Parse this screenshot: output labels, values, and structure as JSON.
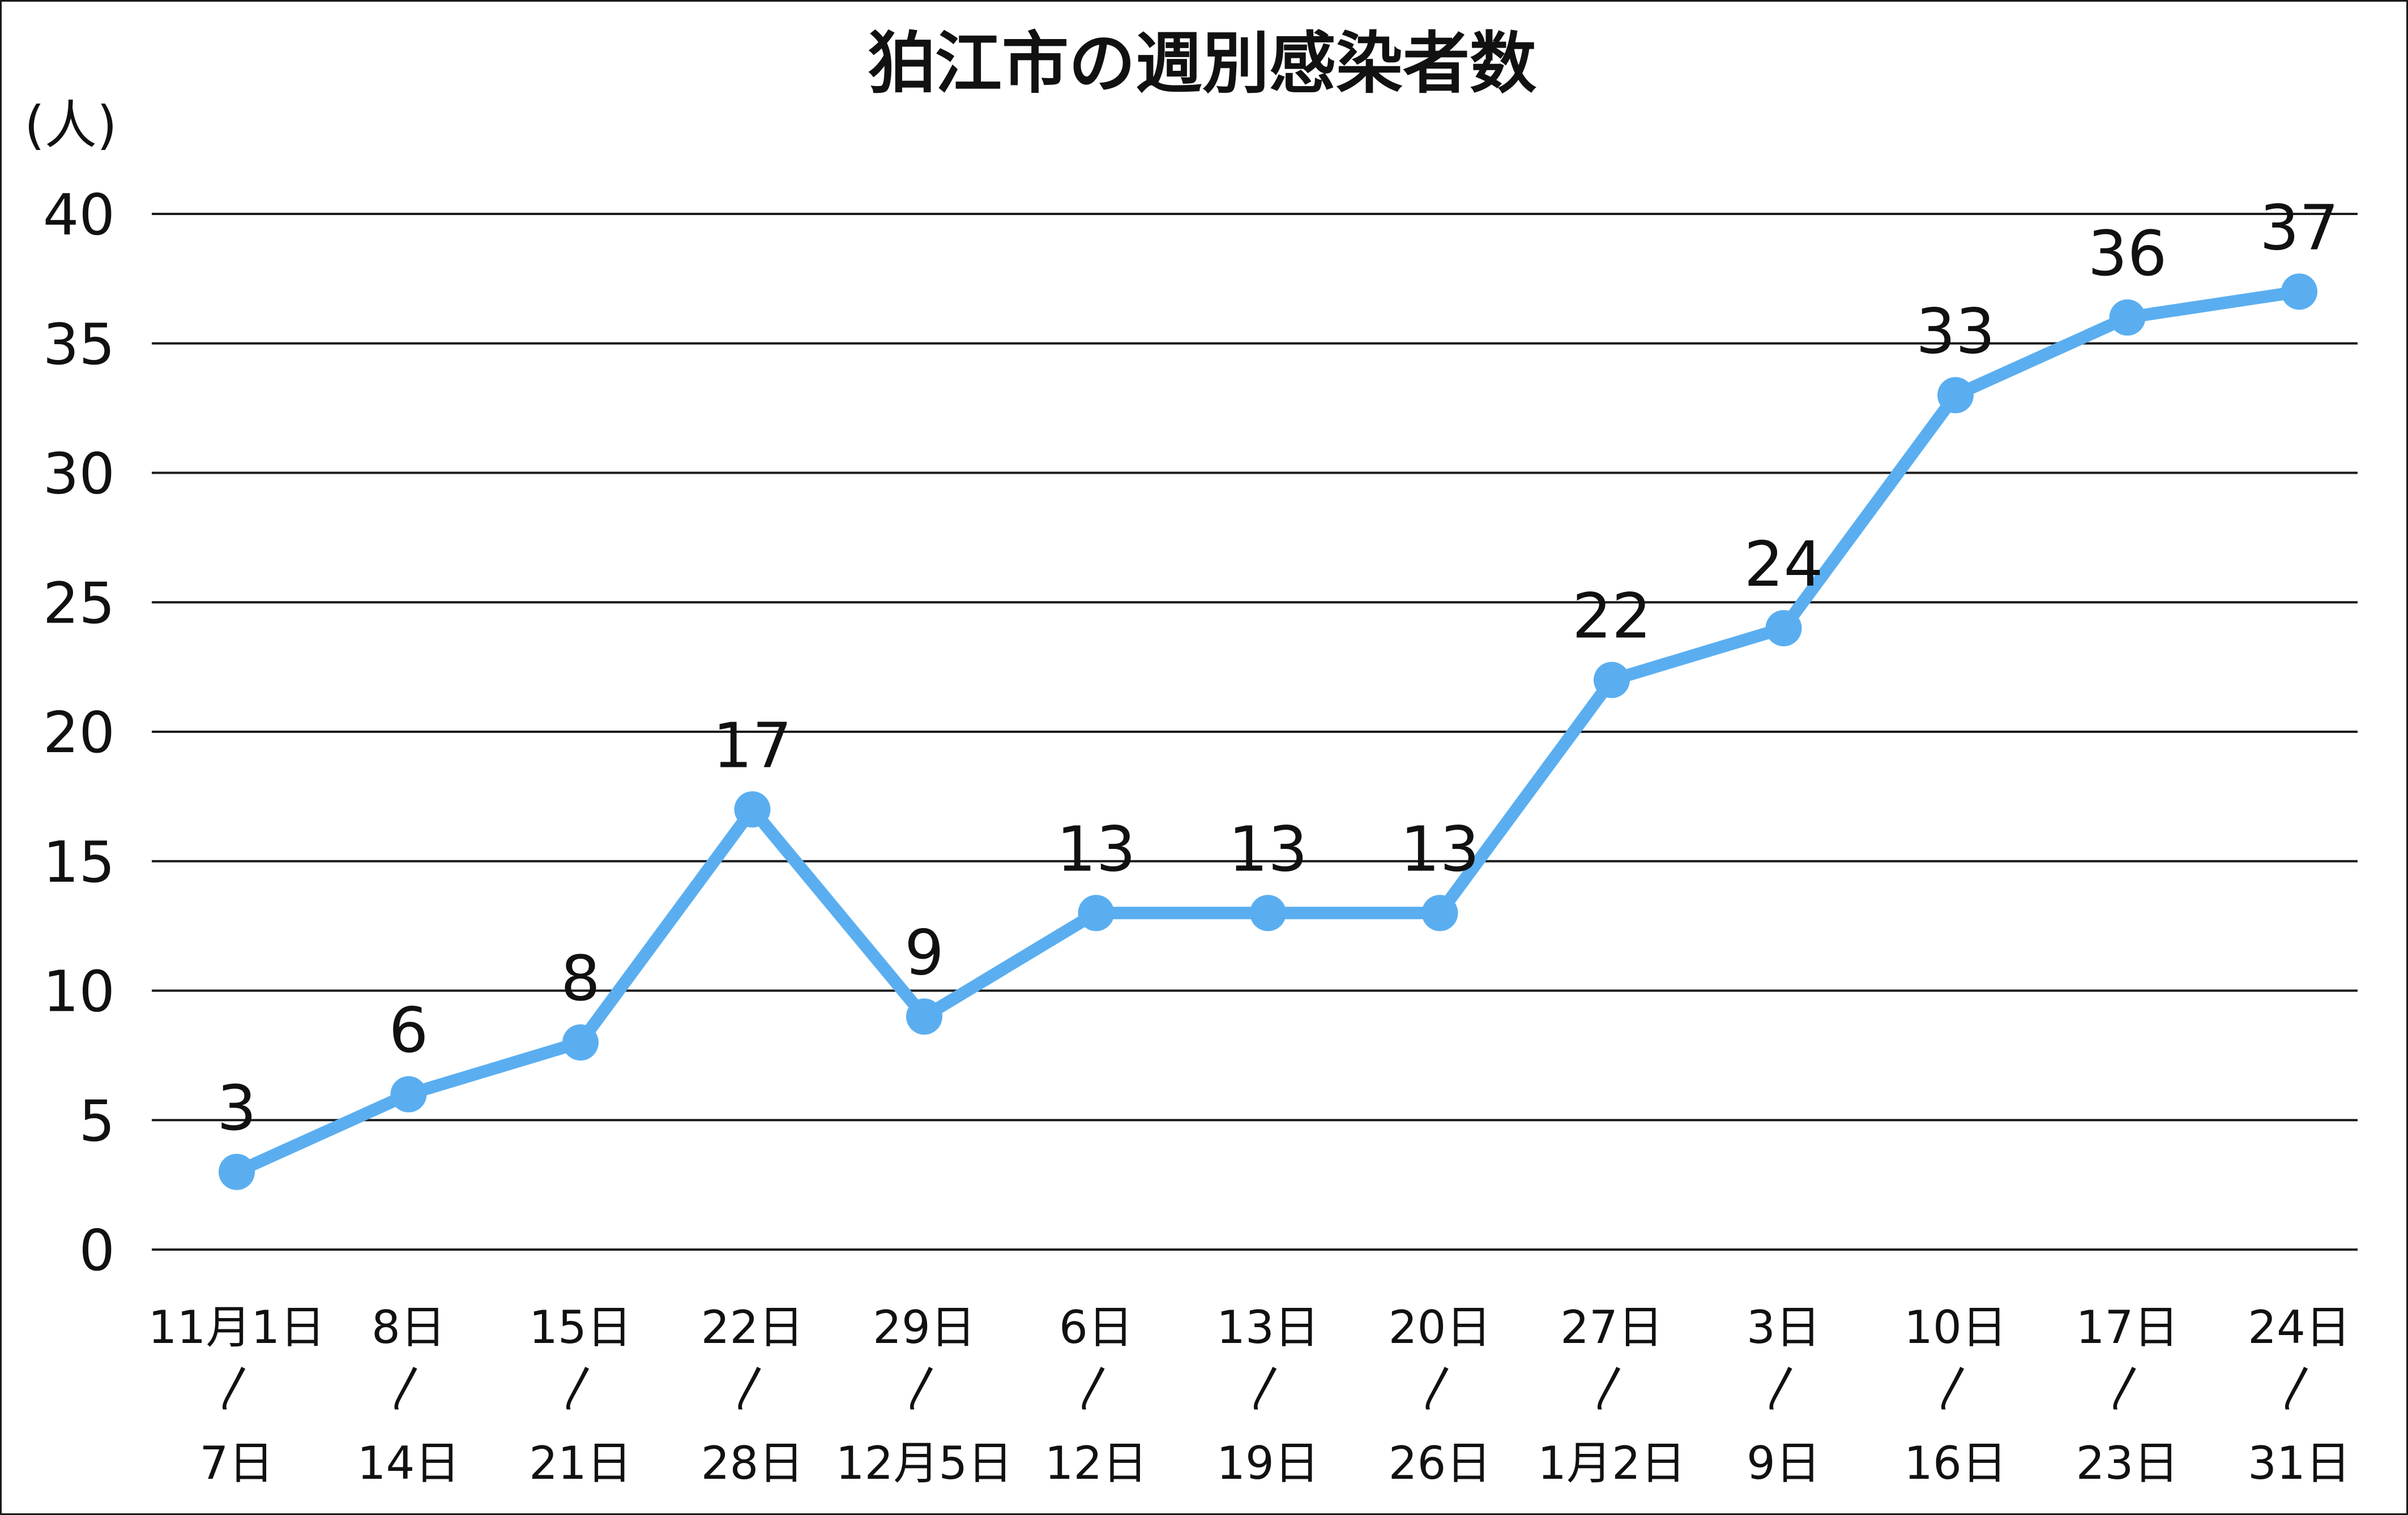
{
  "chart_data": {
    "type": "line",
    "title": "狛江市の週別感染者数",
    "ylabel": "(人)",
    "xlabel": "",
    "ylim": [
      0,
      40
    ],
    "yticks": [
      "0",
      "5",
      "10",
      "15",
      "20",
      "25",
      "30",
      "35",
      "40"
    ],
    "grid": true,
    "color": "#5aaef0",
    "categories": [
      [
        "11月1日",
        "〳",
        "7日"
      ],
      [
        "8日",
        "〳",
        "14日"
      ],
      [
        "15日",
        "〳",
        "21日"
      ],
      [
        "22日",
        "〳",
        "28日"
      ],
      [
        "29日",
        "〳",
        "12月5日"
      ],
      [
        "6日",
        "〳",
        "12日"
      ],
      [
        "13日",
        "〳",
        "19日"
      ],
      [
        "20日",
        "〳",
        "26日"
      ],
      [
        "27日",
        "〳",
        "1月2日"
      ],
      [
        "3日",
        "〳",
        "9日"
      ],
      [
        "10日",
        "〳",
        "16日"
      ],
      [
        "17日",
        "〳",
        "23日"
      ],
      [
        "24日",
        "〳",
        "31日"
      ]
    ],
    "values": [
      3,
      6,
      8,
      17,
      9,
      13,
      13,
      13,
      22,
      24,
      33,
      36,
      37
    ]
  }
}
